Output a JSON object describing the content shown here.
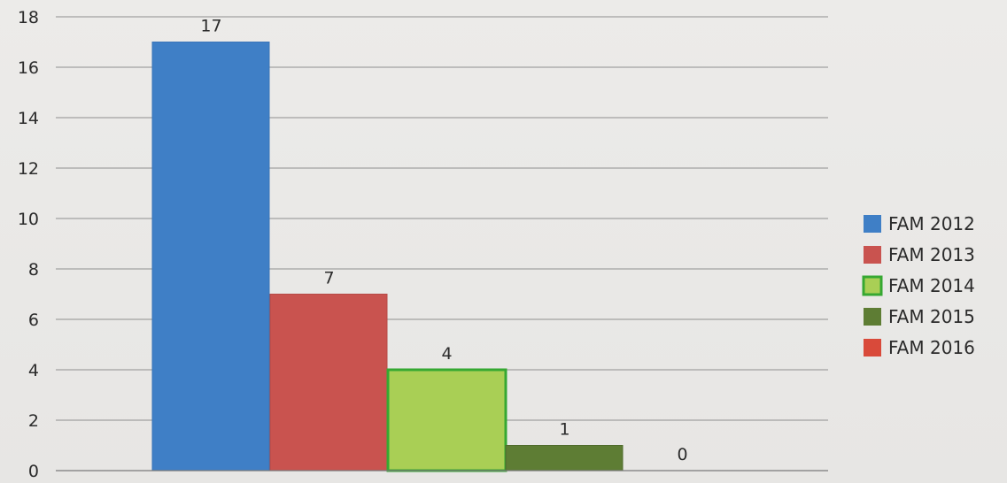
{
  "chart_data": {
    "type": "bar",
    "title": "",
    "xlabel": "",
    "ylabel": "",
    "ylim": [
      0,
      18
    ],
    "yticks": [
      0,
      2,
      4,
      6,
      8,
      10,
      12,
      14,
      16,
      18
    ],
    "grid": true,
    "legend_position": "right",
    "series": [
      {
        "name": "FAM 2012",
        "value": 17,
        "label": "17",
        "color": "#3f7fc6",
        "edge": "#3a74b8"
      },
      {
        "name": "FAM 2013",
        "value": 7,
        "label": "7",
        "color": "#c9534f",
        "edge": "#b64a46"
      },
      {
        "name": "FAM 2014",
        "value": 4,
        "label": "4",
        "color": "#a9cf55",
        "edge": "#36a832"
      },
      {
        "name": "FAM 2015",
        "value": 1,
        "label": "1",
        "color": "#5e7d34",
        "edge": "#4f6b2c"
      },
      {
        "name": "FAM 2016",
        "value": 0,
        "label": "0",
        "color": "#d94a3a",
        "edge": "#c43f31"
      }
    ]
  }
}
